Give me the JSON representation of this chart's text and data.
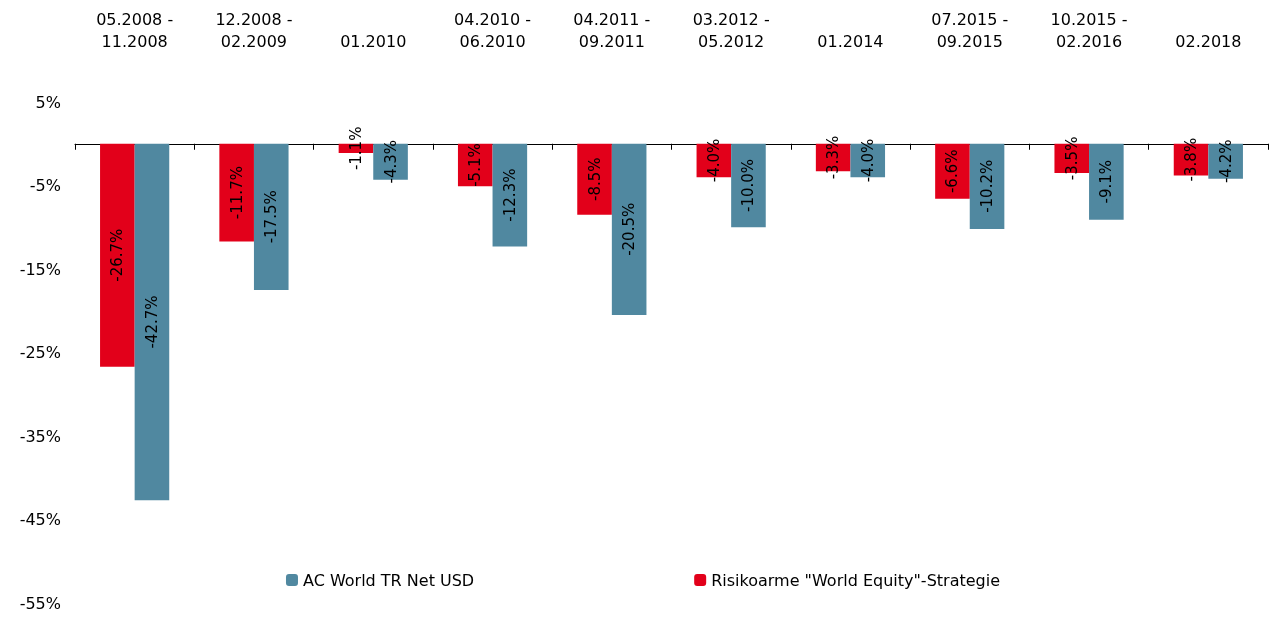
{
  "chart_data": {
    "type": "bar",
    "categories": [
      "05.2008 -\n11.2008",
      "12.2008 -\n02.2009",
      "01.2010",
      "04.2010 -\n06.2010",
      "04.2011 -\n09.2011",
      "03.2012 -\n05.2012",
      "01.2014",
      "07.2015 -\n09.2015",
      "10.2015 -\n02.2016",
      "02.2018"
    ],
    "series": [
      {
        "name": "Risikoarme \"World Equity\"-Strategie",
        "color": "#e2001a",
        "values": [
          -26.7,
          -11.7,
          -1.1,
          -5.1,
          -8.5,
          -4.0,
          -3.3,
          -6.6,
          -3.5,
          -3.8
        ],
        "value_labels": [
          "-26.7%",
          "-11.7%",
          "-1.1%",
          "-5.1%",
          "-8.5%",
          "-4.0%",
          "-3.3%",
          "-6.6%",
          "-3.5%",
          "-3.8%"
        ]
      },
      {
        "name": "AC World TR Net USD",
        "color": "#5088a0",
        "values": [
          -42.7,
          -17.5,
          -4.3,
          -12.3,
          -20.5,
          -10.0,
          -4.0,
          -10.2,
          -9.1,
          -4.2
        ],
        "value_labels": [
          "-42.7%",
          "-17.5%",
          "-4.3%",
          "-12.3%",
          "-20.5%",
          "-10.0%",
          "-4.0%",
          "-10.2%",
          "-9.1%",
          "-4.2%"
        ]
      }
    ],
    "ylim": [
      -55,
      5
    ],
    "yticks": [
      {
        "value": 5,
        "label": "5%"
      },
      {
        "value": -5,
        "label": "-5%"
      },
      {
        "value": -15,
        "label": "-15%"
      },
      {
        "value": -25,
        "label": "-25%"
      },
      {
        "value": -35,
        "label": "-35%"
      },
      {
        "value": -45,
        "label": "-45%"
      },
      {
        "value": -55,
        "label": "-55%"
      }
    ],
    "grid": false,
    "legend": "bottom"
  }
}
